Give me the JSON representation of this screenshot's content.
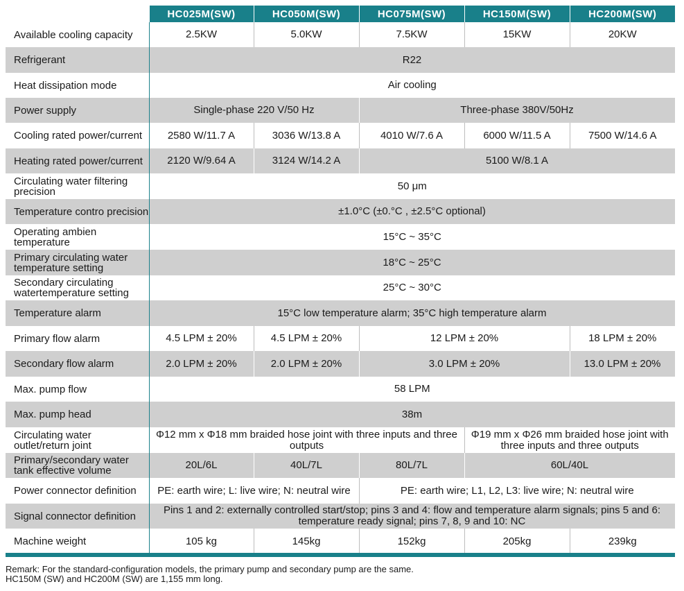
{
  "headers": [
    "HC025M(SW)",
    "HC050M(SW)",
    "HC075M(SW)",
    "HC150M(SW)",
    "HC200M(SW)"
  ],
  "rows": [
    {
      "label": "Available cooling capacity",
      "cells": [
        {
          "text": "2.5KW"
        },
        {
          "text": "5.0KW"
        },
        {
          "text": "7.5KW"
        },
        {
          "text": "15KW"
        },
        {
          "text": "20KW"
        }
      ]
    },
    {
      "label": "Refrigerant",
      "cells": [
        {
          "text": "R22",
          "span": 5
        }
      ]
    },
    {
      "label": "Heat dissipation mode",
      "cells": [
        {
          "text": "Air cooling",
          "span": 5
        }
      ]
    },
    {
      "label": "Power supply",
      "cells": [
        {
          "text": "Single-phase 220 V/50 Hz",
          "span": 2
        },
        {
          "text": "Three-phase 380V/50Hz",
          "span": 3
        }
      ]
    },
    {
      "label": "Cooling rated power/current",
      "cells": [
        {
          "text": "2580 W/11.7 A"
        },
        {
          "text": "3036 W/13.8 A"
        },
        {
          "text": "4010 W/7.6 A"
        },
        {
          "text": "6000 W/11.5 A"
        },
        {
          "text": "7500 W/14.6 A"
        }
      ]
    },
    {
      "label": "Heating rated power/current",
      "cells": [
        {
          "text": "2120 W/9.64 A"
        },
        {
          "text": "3124 W/14.2 A"
        },
        {
          "text": "5100 W/8.1 A",
          "span": 3
        }
      ]
    },
    {
      "label": "Circulating water filtering precision",
      "cells": [
        {
          "text": "50 μm",
          "span": 5
        }
      ]
    },
    {
      "label": "Temperature contro precision",
      "cells": [
        {
          "text": "±1.0°C  (±0.°C , ±2.5°C  optional)",
          "span": 5
        }
      ]
    },
    {
      "label": "Operating ambien temperature",
      "cells": [
        {
          "text": "15°C ~ 35°C",
          "span": 5
        }
      ]
    },
    {
      "label": "Primary circulating water temperature setting",
      "cells": [
        {
          "text": "18°C ~ 25°C",
          "span": 5
        }
      ]
    },
    {
      "label": "Secondary circulating watertemperature setting",
      "cells": [
        {
          "text": "25°C ~ 30°C",
          "span": 5
        }
      ]
    },
    {
      "label": "Temperature alarm",
      "cells": [
        {
          "text": "15°C low temperature alarm; 35°C high temperature alarm",
          "span": 5
        }
      ]
    },
    {
      "label": "Primary flow alarm",
      "cells": [
        {
          "text": "4.5 LPM ± 20%"
        },
        {
          "text": "4.5 LPM ± 20%"
        },
        {
          "text": "12 LPM ± 20%",
          "span": 2
        },
        {
          "text": "18 LPM ± 20%"
        }
      ]
    },
    {
      "label": "Secondary flow alarm",
      "cells": [
        {
          "text": "2.0 LPM ± 20%"
        },
        {
          "text": "2.0 LPM ± 20%"
        },
        {
          "text": "3.0 LPM ± 20%",
          "span": 2
        },
        {
          "text": "13.0 LPM ± 20%"
        }
      ]
    },
    {
      "label": "Max. pump flow",
      "cells": [
        {
          "text": "58 LPM",
          "span": 5
        }
      ]
    },
    {
      "label": "Max. pump head",
      "cells": [
        {
          "text": "38m",
          "span": 5
        }
      ]
    },
    {
      "label": "Circulating water outlet/return joint",
      "cells": [
        {
          "text": "Φ12 mm x Φ18 mm braided hose joint with three inputs and three outputs",
          "span": 3
        },
        {
          "text": "Φ19 mm x Φ26 mm braided hose joint with three inputs and three outputs",
          "span": 2
        }
      ]
    },
    {
      "label": "Primary/secondary water tank effective volume",
      "cells": [
        {
          "text": "20L/6L"
        },
        {
          "text": "40L/7L"
        },
        {
          "text": "80L/7L"
        },
        {
          "text": "60L/40L",
          "span": 2
        }
      ]
    },
    {
      "label": "Power connector definition",
      "cells": [
        {
          "text": "PE: earth wire; L: live wire; N: neutral wire",
          "span": 2
        },
        {
          "text": "PE: earth wire; L1, L2, L3: live wire; N: neutral wire",
          "span": 3
        }
      ]
    },
    {
      "label": "Signal connector definition",
      "cells": [
        {
          "text": "Pins 1 and 2: externally controlled start/stop; pins 3 and 4: flow and temperature alarm signals; pins 5 and 6: temperature ready signal; pins 7, 8, 9 and 10: NC",
          "span": 5
        }
      ]
    },
    {
      "label": "Machine weight",
      "cells": [
        {
          "text": "105 kg"
        },
        {
          "text": "145kg"
        },
        {
          "text": "152kg"
        },
        {
          "text": "205kg"
        },
        {
          "text": "239kg"
        }
      ]
    }
  ],
  "remark": {
    "line1": "Remark: For the standard-configuration models, the primary pump and secondary pump are the same.",
    "line2": "HC150M (SW) and HC200M (SW) are 1,155 mm long."
  },
  "colors": {
    "accent": "#19808a",
    "band": "#cfcfcf"
  }
}
